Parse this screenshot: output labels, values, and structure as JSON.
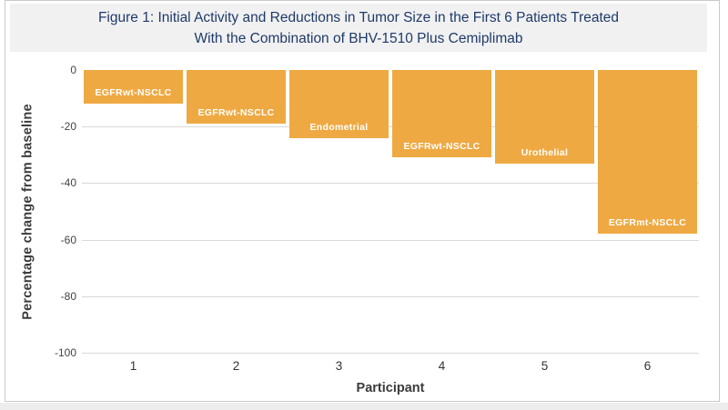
{
  "figure": {
    "title_line1": "Figure 1: Initial Activity and Reductions in Tumor Size in the First 6 Patients Treated",
    "title_line2": "With the Combination of BHV-1510 Plus Cemiplimab"
  },
  "chart_data": {
    "type": "bar",
    "orientation": "vertical",
    "categories": [
      "1",
      "2",
      "3",
      "4",
      "5",
      "6"
    ],
    "values": [
      -12,
      -19,
      -24,
      -31,
      -33,
      -58
    ],
    "bar_labels": [
      "EGFRwt-NSCLC",
      "EGFRwt-NSCLC",
      "Endometrial",
      "EGFRwt-NSCLC",
      "Urothelial",
      "EGFRmt-NSCLC"
    ],
    "title": "Figure 1: Initial Activity and Reductions in Tumor Size in the First 6 Patients Treated With the Combination of BHV-1510 Plus Cemiplimab",
    "xlabel": "Participant",
    "ylabel": "Percentage change from baseline",
    "ylim": [
      0,
      -100
    ],
    "yticks": [
      0,
      -20,
      -40,
      -60,
      -80,
      -100
    ],
    "grid": "horizontal",
    "legend": "none",
    "bar_color": "#efa942",
    "bar_label_color": "#ffffff",
    "title_color": "#1f3a68",
    "gridline_color": "#d8d8d8"
  }
}
